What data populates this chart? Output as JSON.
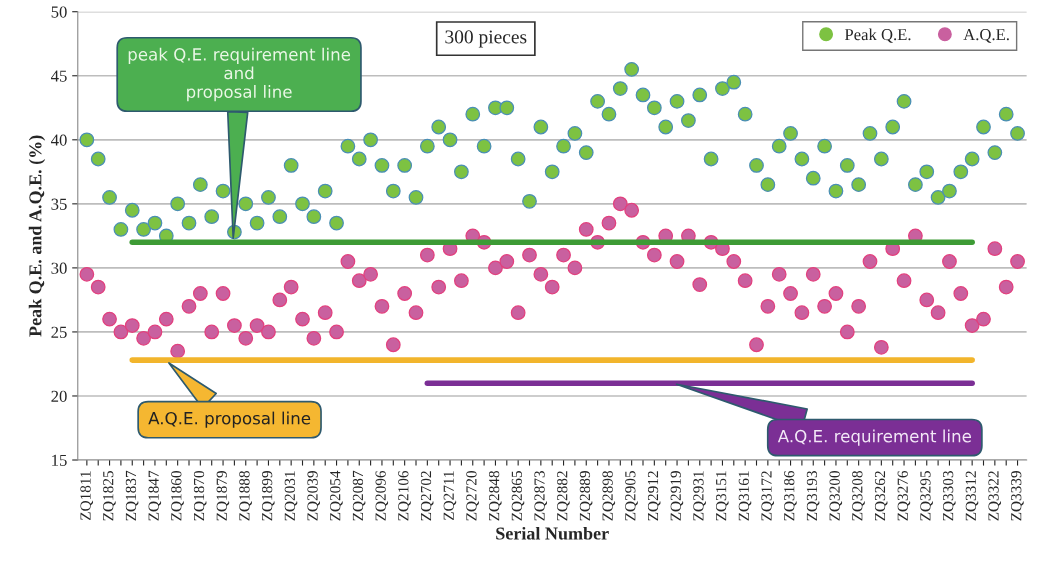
{
  "chart_data": {
    "type": "scatter",
    "ylabel": "Peak Q.E. and A.Q.E. (%)",
    "xlabel": "Serial Number",
    "categories": [
      "ZQ1811",
      null,
      "ZQ1825",
      null,
      "ZQ1837",
      null,
      "ZQ1847",
      null,
      "ZQ1860",
      null,
      "ZQ1870",
      null,
      "ZQ1879",
      null,
      "ZQ1888",
      null,
      "ZQ1899",
      null,
      "ZQ2031",
      null,
      "ZQ2039",
      null,
      "ZQ2054",
      null,
      "ZQ2087",
      null,
      "ZQ2096",
      null,
      "ZQ2106",
      null,
      "ZQ2702",
      null,
      "ZQ2711",
      null,
      "ZQ2720",
      null,
      "ZQ2848",
      null,
      "ZQ2865",
      null,
      "ZQ2873",
      null,
      "ZQ2882",
      null,
      "ZQ2889",
      null,
      "ZQ2898",
      null,
      "ZQ2905",
      null,
      "ZQ2912",
      null,
      "ZQ2919",
      null,
      "ZQ2931",
      null,
      "ZQ3151",
      null,
      "ZQ3161",
      null,
      "ZQ3172",
      null,
      "ZQ3186",
      null,
      "ZQ3193",
      null,
      "ZQ3200",
      null,
      "ZQ3208",
      null,
      "ZQ3262",
      null,
      "ZQ3276",
      null,
      "ZQ3295",
      null,
      "ZQ3303",
      null,
      "ZQ3312",
      null,
      "ZQ3322",
      null,
      "ZQ3339"
    ],
    "series": [
      {
        "name": "Peak Q.E.",
        "marker": "circle",
        "color": "#7dc242",
        "values": [
          40,
          38.5,
          35.5,
          33,
          34.5,
          33,
          33.5,
          32.5,
          35,
          33.5,
          36.5,
          34,
          36,
          32.8,
          35,
          33.5,
          35.5,
          34,
          38,
          35,
          34,
          36,
          33.5,
          39.5,
          38.5,
          40,
          38,
          36,
          38,
          35.5,
          39.5,
          41,
          40,
          37.5,
          42,
          39.5,
          42.5,
          42.5,
          38.5,
          35.2,
          41,
          37.5,
          39.5,
          40.5,
          39,
          43,
          42,
          44,
          45.5,
          43.5,
          42.5,
          41,
          43,
          41.5,
          43.5,
          38.5,
          44,
          44.5,
          42,
          38,
          36.5,
          39.5,
          40.5,
          38.5,
          37,
          39.5,
          36,
          38,
          36.5,
          40.5,
          38.5,
          41,
          43,
          36.5,
          37.5,
          35.5,
          36,
          37.5,
          38.5,
          41,
          39,
          42,
          40.5
        ]
      },
      {
        "name": "A.Q.E.",
        "marker": "circle",
        "color": "#c9609f",
        "values": [
          29.5,
          28.5,
          26,
          25,
          25.5,
          24.5,
          25,
          26,
          23.5,
          27,
          28,
          25,
          28,
          25.5,
          24.5,
          25.5,
          25,
          27.5,
          28.5,
          26,
          24.5,
          26.5,
          25,
          30.5,
          29,
          29.5,
          27,
          24,
          28,
          26.5,
          31,
          28.5,
          31.5,
          29,
          32.5,
          32,
          30,
          30.5,
          26.5,
          31,
          29.5,
          28.5,
          31,
          30,
          33,
          32,
          33.5,
          35,
          34.5,
          32,
          31,
          32.5,
          30.5,
          32.5,
          28.7,
          32,
          31.5,
          30.5,
          29,
          24,
          27,
          29.5,
          28,
          26.5,
          29.5,
          27,
          28,
          25,
          27,
          30.5,
          23.8,
          31.5,
          29,
          32.5,
          27.5,
          26.5,
          30.5,
          28,
          25.5,
          26,
          31.5,
          28.5,
          30.5
        ]
      },
      {
        "name": "peak Q.E. requirement line\nand\nproposal line",
        "type": "line",
        "color": "#3d9b35",
        "x": [
          "ZQ1837",
          "ZQ3312"
        ],
        "values": [
          32,
          32
        ]
      },
      {
        "name": "A.Q.E. proposal line",
        "type": "line",
        "color": "#f2b52c",
        "x": [
          "ZQ1837",
          "ZQ3312"
        ],
        "values": [
          22.8,
          22.8
        ]
      },
      {
        "name": "A.Q.E. requirement line",
        "type": "line",
        "color": "#7b2f95",
        "x": [
          "ZQ2702",
          "ZQ3312"
        ],
        "values": [
          21,
          21
        ]
      }
    ],
    "ylim": [
      15,
      50
    ],
    "yticks": [
      15,
      20,
      25,
      30,
      35,
      40,
      45,
      50
    ],
    "grid": "y",
    "legend": "top right",
    "annotations": [
      "300 pieces"
    ]
  }
}
